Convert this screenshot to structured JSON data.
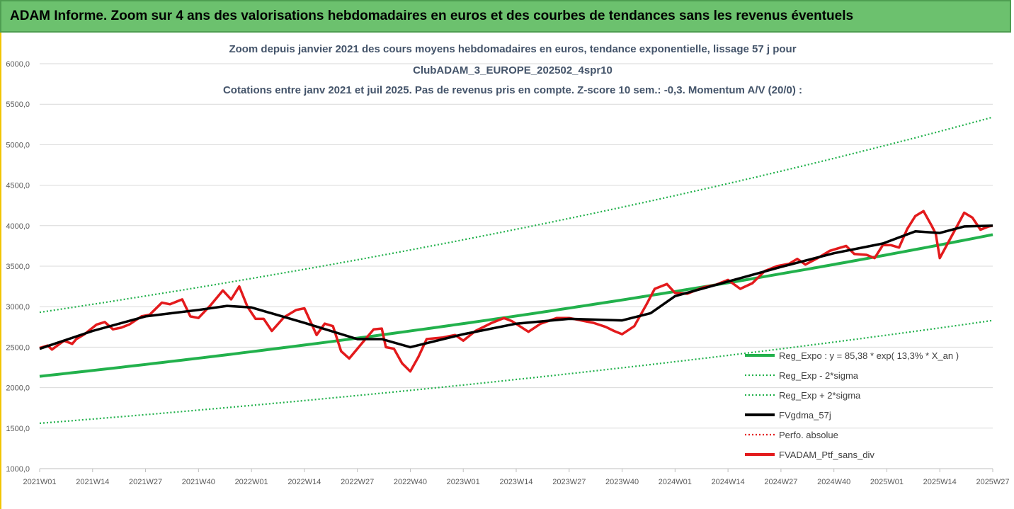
{
  "banner": {
    "title": "ADAM Informe. Zoom sur 4 ans des valorisations hebdomadaires en euros et des courbes de tendances sans les revenus éventuels"
  },
  "colors": {
    "banner_bg": "#6cc16e",
    "expo": "#22b14c",
    "sigma": "#22b14c",
    "gdma": "#000000",
    "perfo": "#e31a1c",
    "ptf": "#e31a1c",
    "title": "#44546a"
  },
  "chart_data": {
    "type": "line",
    "title_lines": [
      "Zoom depuis janvier 2021 des cours moyens hebdomadaires  en euros, tendance exponentielle, lissage 57 j pour",
      "ClubADAM_3_EUROPE_202502_4spr10",
      "Cotations entre janv 2021 et juil 2025. Pas de revenus pris en compte. Z-score 10 sem.: -0,3. Momentum A/V (20/0) :"
    ],
    "ylim": [
      1000,
      6000
    ],
    "yticks": [
      "1000,0",
      "1500,0",
      "2000,0",
      "2500,0",
      "3000,0",
      "3500,0",
      "4000,0",
      "4500,0",
      "5000,0",
      "5500,0",
      "6000,0"
    ],
    "ytick_values": [
      1000,
      1500,
      2000,
      2500,
      3000,
      3500,
      4000,
      4500,
      5000,
      5500,
      6000
    ],
    "xticks": [
      "2021W01",
      "2021W14",
      "2021W27",
      "2021W40",
      "2022W01",
      "2022W14",
      "2022W27",
      "2022W40",
      "2023W01",
      "2023W14",
      "2023W27",
      "2023W40",
      "2024W01",
      "2024W14",
      "2024W27",
      "2024W40",
      "2025W01",
      "2025W14",
      "2025W27"
    ],
    "grid": "horizontal",
    "legend_position": "bottom-right",
    "legend": [
      {
        "label": "Reg_Expo : y = 85,38 * exp( 13,3% *  X_an )",
        "style": "solid",
        "color": "#22b14c"
      },
      {
        "label": "Reg_Exp - 2*sigma",
        "style": "dotted",
        "color": "#22b14c"
      },
      {
        "label": "Reg_Exp + 2*sigma",
        "style": "dotted",
        "color": "#22b14c"
      },
      {
        "label": "FVgdma_57j",
        "style": "solid",
        "color": "#000000"
      },
      {
        "label": "Perfo. absolue",
        "style": "dotted",
        "color": "#e31a1c"
      },
      {
        "label": "FVADAM_Ptf_sans_div",
        "style": "solid",
        "color": "#e31a1c"
      }
    ],
    "series": {
      "reg_expo": {
        "start": 2140,
        "end": 3890
      },
      "reg_minus": {
        "start": 1560,
        "end": 2830
      },
      "reg_plus": {
        "start": 2930,
        "end": 5340
      },
      "fvgdma_57j": {
        "x": [
          "2021W01",
          "2021W14",
          "2021W27",
          "2021W40",
          "2021W47",
          "2022W01",
          "2022W14",
          "2022W27",
          "2022W33",
          "2022W40",
          "2023W01",
          "2023W14",
          "2023W27",
          "2023W40",
          "2023W47",
          "2024W01",
          "2024W14",
          "2024W27",
          "2024W40",
          "2024W52",
          "2025W08",
          "2025W14",
          "2025W20",
          "2025W27"
        ],
        "y": [
          2480,
          2700,
          2880,
          2960,
          3010,
          2990,
          2800,
          2600,
          2600,
          2500,
          2660,
          2790,
          2850,
          2830,
          2920,
          3130,
          3310,
          3490,
          3660,
          3780,
          3930,
          3910,
          3990,
          4000
        ]
      },
      "fvadam_ptf_sans_div": {
        "x": [
          "2021W01",
          "2021W03",
          "2021W04",
          "2021W07",
          "2021W09",
          "2021W10",
          "2021W12",
          "2021W15",
          "2021W17",
          "2021W19",
          "2021W21",
          "2021W23",
          "2021W26",
          "2021W28",
          "2021W31",
          "2021W33",
          "2021W36",
          "2021W38",
          "2021W40",
          "2021W43",
          "2021W46",
          "2021W48",
          "2021W50",
          "2021W52",
          "2022W02",
          "2022W04",
          "2022W06",
          "2022W09",
          "2022W12",
          "2022W14",
          "2022W17",
          "2022W19",
          "2022W21",
          "2022W23",
          "2022W25",
          "2022W28",
          "2022W31",
          "2022W33",
          "2022W34",
          "2022W36",
          "2022W38",
          "2022W39",
          "2022W40",
          "2022W42",
          "2022W44",
          "2022W48",
          "2022W51",
          "2023W01",
          "2023W04",
          "2023W08",
          "2023W11",
          "2023W13",
          "2023W17",
          "2023W20",
          "2023W24",
          "2023W27",
          "2023W30",
          "2023W33",
          "2023W36",
          "2023W38",
          "2023W40",
          "2023W43",
          "2023W46",
          "2023W48",
          "2023W51",
          "2024W01",
          "2024W04",
          "2024W08",
          "2024W11",
          "2024W14",
          "2024W17",
          "2024W20",
          "2024W23",
          "2024W26",
          "2024W29",
          "2024W31",
          "2024W33",
          "2024W36",
          "2024W39",
          "2024W41",
          "2024W43",
          "2024W45",
          "2024W48",
          "2024W50",
          "2024W52",
          "2025W02",
          "2025W04",
          "2025W06",
          "2025W08",
          "2025W10",
          "2025W12",
          "2025W13",
          "2025W14",
          "2025W17",
          "2025W20",
          "2025W22",
          "2025W24",
          "2025W26",
          "2025W27"
        ],
        "y": [
          2490,
          2520,
          2470,
          2580,
          2540,
          2600,
          2660,
          2780,
          2810,
          2720,
          2740,
          2780,
          2880,
          2900,
          3050,
          3030,
          3090,
          2880,
          2860,
          3020,
          3200,
          3090,
          3250,
          3000,
          2850,
          2850,
          2700,
          2870,
          2960,
          2980,
          2650,
          2790,
          2760,
          2450,
          2360,
          2540,
          2720,
          2730,
          2500,
          2480,
          2300,
          2250,
          2200,
          2380,
          2600,
          2620,
          2650,
          2580,
          2700,
          2800,
          2860,
          2820,
          2690,
          2790,
          2860,
          2860,
          2830,
          2800,
          2750,
          2700,
          2660,
          2760,
          3030,
          3220,
          3280,
          3170,
          3160,
          3240,
          3270,
          3330,
          3220,
          3290,
          3440,
          3500,
          3530,
          3590,
          3520,
          3600,
          3690,
          3720,
          3750,
          3650,
          3640,
          3600,
          3760,
          3760,
          3730,
          3960,
          4120,
          4180,
          4000,
          3900,
          3600,
          3880,
          4160,
          4100,
          3950,
          3990,
          4000
        ]
      }
    }
  }
}
